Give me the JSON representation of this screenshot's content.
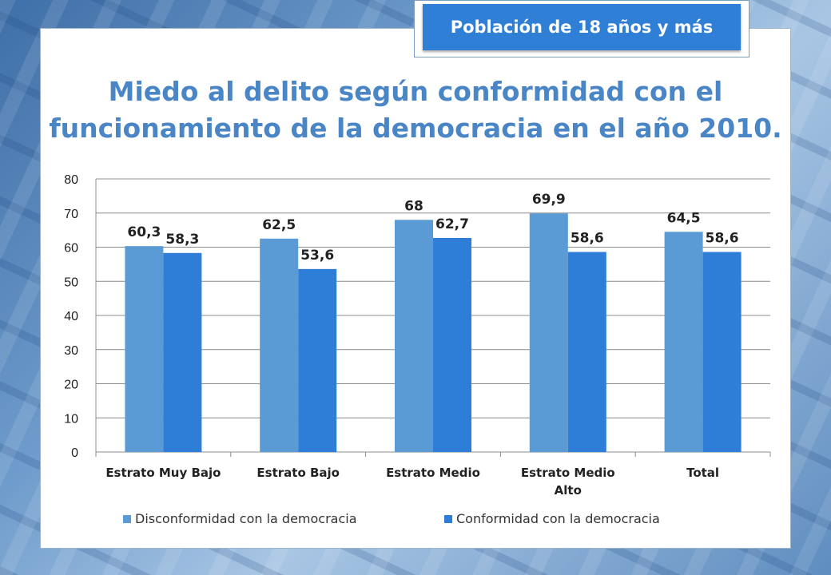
{
  "badge": {
    "label": "Población de 18 años y más"
  },
  "chart_data": {
    "type": "bar",
    "title": "Miedo al delito según conformidad con el funcionamiento de la democracia en el año 2010.",
    "categories": [
      [
        "Estrato Muy Bajo"
      ],
      [
        "Estrato Bajo"
      ],
      [
        "Estrato Medio"
      ],
      [
        "Estrato Medio",
        "Alto"
      ],
      [
        "Total"
      ]
    ],
    "series": [
      {
        "name": "Disconformidad con la democracia",
        "values": [
          60.3,
          62.5,
          68,
          69.9,
          64.5
        ],
        "labels": [
          "60,3",
          "62,5",
          "68",
          "69,9",
          "64,5"
        ],
        "color": "#5b9bd5"
      },
      {
        "name": "Conformidad con la democracia",
        "values": [
          58.3,
          53.6,
          62.7,
          58.6,
          58.6
        ],
        "labels": [
          "58,3",
          "53,6",
          "62,7",
          "58,6",
          "58,6"
        ],
        "color": "#2e7ed8"
      }
    ],
    "ylim": [
      0,
      80
    ],
    "yticks": [
      0,
      10,
      20,
      30,
      40,
      50,
      60,
      70,
      80
    ],
    "grid": true,
    "legend": "bottom"
  }
}
